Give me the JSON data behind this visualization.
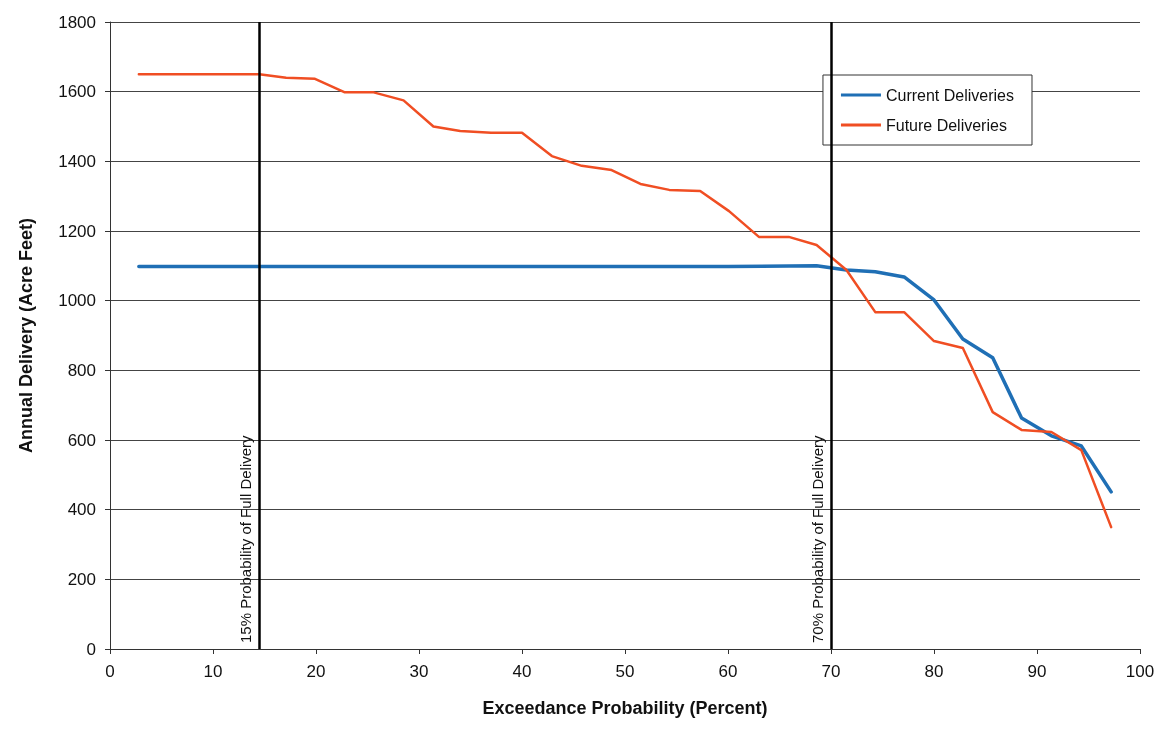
{
  "chart_data": {
    "type": "line",
    "xlabel": "Exceedance Probability (Percent)",
    "ylabel": "Annual Delivery (Acre Feet)",
    "xlim": [
      0,
      100
    ],
    "xticks": [
      0,
      10,
      20,
      30,
      40,
      50,
      60,
      70,
      80,
      90,
      100
    ],
    "ylim": [
      0,
      1800
    ],
    "yticks": [
      0,
      200,
      400,
      600,
      800,
      1000,
      1200,
      1400,
      1600,
      1800
    ],
    "grid": "y",
    "legend": "top right",
    "marker": "none",
    "line_style": "solid",
    "series": [
      {
        "name": "Current Deliveries",
        "color": "#1f6fb5",
        "x": [
          2.8,
          14.5,
          20,
          30,
          40,
          50,
          60,
          68.6,
          71.5,
          74.3,
          77.1,
          80,
          82.8,
          85.7,
          88.5,
          91.4,
          94.3,
          97.2
        ],
        "values": [
          1098,
          1098,
          1098,
          1098,
          1098,
          1098,
          1098,
          1100,
          1088,
          1083,
          1068,
          1002,
          890,
          836,
          663,
          612,
          583,
          451
        ]
      },
      {
        "name": "Future Deliveries",
        "color": "#f04e23",
        "x": [
          2.8,
          14.5,
          17.1,
          19.9,
          22.8,
          25.6,
          28.5,
          31.4,
          34,
          37,
          40,
          42.9,
          45.8,
          48.7,
          51.5,
          54.3,
          57.3,
          60.1,
          63,
          65.9,
          68.6,
          71.5,
          74.3,
          77.1,
          80,
          82.8,
          85.7,
          88.5,
          91.4,
          94.3,
          97.2
        ],
        "values": [
          1650,
          1650,
          1640,
          1637,
          1598,
          1598,
          1575,
          1500,
          1487,
          1482,
          1482,
          1415,
          1387,
          1375,
          1335,
          1318,
          1315,
          1257,
          1183,
          1183,
          1160,
          1088,
          967,
          967,
          884,
          864,
          680,
          629,
          623,
          571,
          350
        ]
      }
    ],
    "ref_lines": [
      {
        "axis": "x",
        "value": 14.5,
        "label": "15% Probability of Full Delivery",
        "color": "#000000"
      },
      {
        "axis": "x",
        "value": 70,
        "label": "70% Probability of Full Delivery",
        "color": "#000000"
      }
    ]
  }
}
